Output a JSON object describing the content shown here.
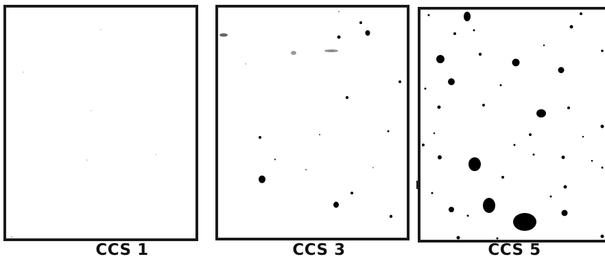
{
  "figure": {
    "panels": [
      {
        "caption": "CCS 1"
      },
      {
        "caption": "CCS 3"
      },
      {
        "caption": "CCS 5"
      }
    ]
  },
  "colors": {
    "border": "#1a1a1a",
    "spots": "#000000",
    "background": "#ffffff"
  }
}
